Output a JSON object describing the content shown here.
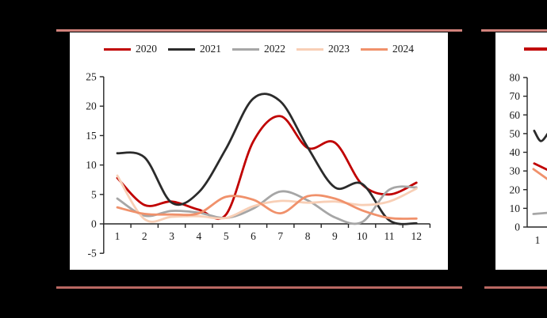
{
  "frame": {
    "background": "#000000",
    "panel_bg": "#ffffff",
    "top_rule_color": "#d1827b",
    "bottom_rule_color": "#b96862",
    "axis_color": "#262626",
    "label_color": "#1a1a1a"
  },
  "chart_data": [
    {
      "type": "line",
      "title": "",
      "xlabel": "",
      "ylabel": "",
      "grid": false,
      "legend_position": "top",
      "x": [
        1,
        2,
        3,
        4,
        5,
        6,
        7,
        8,
        9,
        10,
        11,
        12
      ],
      "xticks": [
        "1",
        "2",
        "3",
        "4",
        "5",
        "6",
        "7",
        "8",
        "9",
        "10",
        "11",
        "12"
      ],
      "ylim": [
        -5,
        25
      ],
      "yticks": [
        "-5",
        "0",
        "5",
        "10",
        "15",
        "20",
        "25"
      ],
      "series": [
        {
          "name": "2020",
          "color": "#c00000",
          "values": [
            7.8,
            3.2,
            3.8,
            2.4,
            1.6,
            14.0,
            18.3,
            12.9,
            13.8,
            6.7,
            5.0,
            7.0
          ]
        },
        {
          "name": "2021",
          "color": "#2b2b2b",
          "values": [
            12.0,
            11.3,
            3.6,
            5.4,
            12.8,
            21.3,
            20.8,
            13.0,
            6.2,
            6.8,
            0.6,
            0.1
          ]
        },
        {
          "name": "2022",
          "color": "#a6a6a6",
          "values": [
            4.3,
            1.4,
            2.2,
            1.9,
            1.0,
            2.6,
            5.5,
            4.0,
            1.1,
            0.3,
            5.8,
            6.2
          ]
        },
        {
          "name": "2023",
          "color": "#f8cfb6",
          "values": [
            8.2,
            0.8,
            1.2,
            1.3,
            1.0,
            3.0,
            3.9,
            3.6,
            3.8,
            3.2,
            3.8,
            6.0
          ]
        },
        {
          "name": "2024",
          "color": "#f0916b",
          "values": [
            2.8,
            1.7,
            1.6,
            1.8,
            4.6,
            4.1,
            1.8,
            4.7,
            4.3,
            2.3,
            1.0,
            0.9
          ]
        }
      ]
    },
    {
      "type": "line",
      "title": "",
      "note": "chart partially visible, clipped at right edge of screenshot",
      "ylim": [
        0,
        80
      ],
      "yticks": [
        "0",
        "10",
        "20",
        "30",
        "40",
        "50",
        "60",
        "70",
        "80"
      ],
      "xticks_visible": [
        "1"
      ],
      "legend_visible_series": [
        {
          "name": "2020",
          "color": "#c00000"
        }
      ],
      "series_fragments": [
        {
          "name": "2021",
          "color": "#2b2b2b",
          "points": [
            [
              0.88,
              51.5
            ],
            [
              1.12,
              46.0
            ],
            [
              1.38,
              50.0
            ]
          ]
        },
        {
          "name": "2020",
          "color": "#c00000",
          "points": [
            [
              0.88,
              34.0
            ],
            [
              1.38,
              30.5
            ]
          ]
        },
        {
          "name": "2024",
          "color": "#f0916b",
          "points": [
            [
              0.85,
              31.0
            ],
            [
              1.38,
              25.5
            ]
          ]
        },
        {
          "name": "2022",
          "color": "#a6a6a6",
          "points": [
            [
              0.85,
              7.0
            ],
            [
              1.38,
              7.6
            ]
          ]
        }
      ]
    }
  ]
}
